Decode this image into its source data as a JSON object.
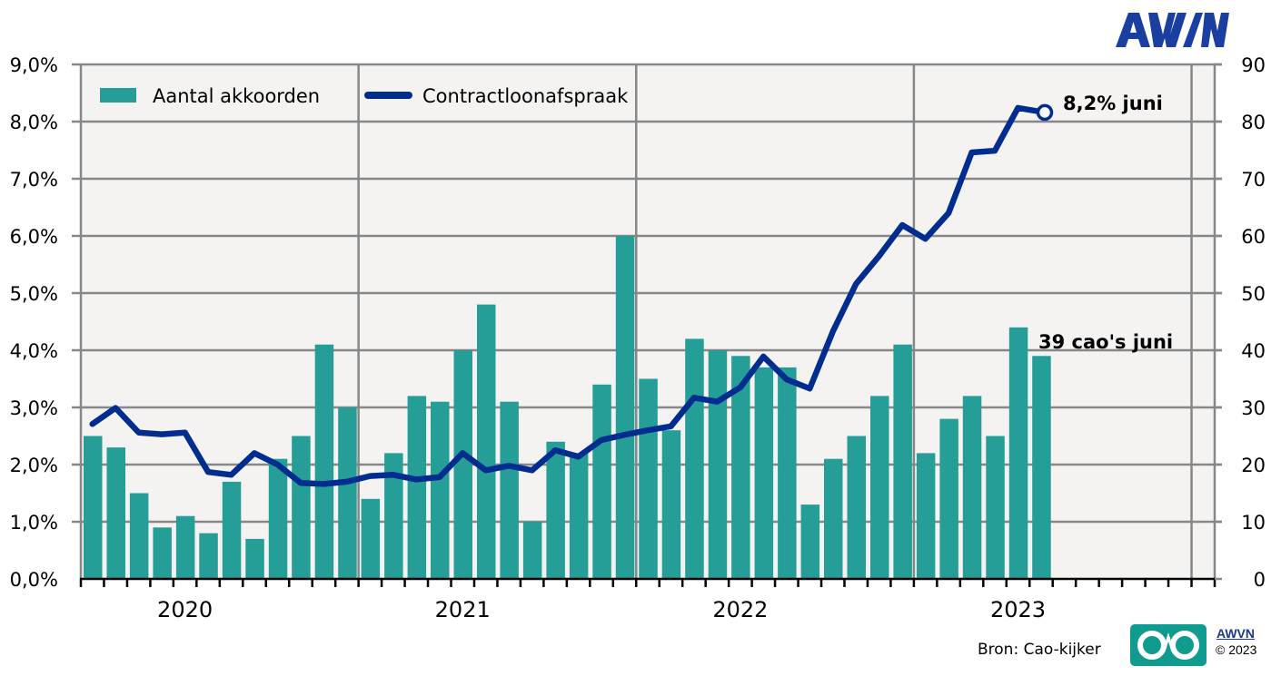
{
  "brand": {
    "logo_text": "AWVN",
    "small_logo_text": "AWVN",
    "copyright": "© 2023",
    "source": "Bron: Cao-kijker"
  },
  "colors": {
    "bar": "#259e97",
    "line": "#002d8f",
    "plot_bg": "#f4f3f2",
    "grid": "#878787",
    "logo_blue": "#1a3fa0",
    "logo_teal": "#0f9b8e"
  },
  "chart_data": {
    "type": "bar+line",
    "title": "",
    "legend": {
      "placement": "top-left",
      "entries": [
        {
          "label": "Aantal akkoorden",
          "kind": "bar"
        },
        {
          "label": "Contractloonafspraak",
          "kind": "line"
        }
      ]
    },
    "x_labels": [
      "2020",
      "2021",
      "2022",
      "2023"
    ],
    "months_per_year": 12,
    "total_slots": 49,
    "y_left": {
      "label": "",
      "min": 0,
      "max": 9,
      "step": 1,
      "tick_labels": [
        "0,0%",
        "1,0%",
        "2,0%",
        "3,0%",
        "4,0%",
        "5,0%",
        "6,0%",
        "7,0%",
        "8,0%",
        "9,0%"
      ]
    },
    "y_right": {
      "label": "",
      "min": 0,
      "max": 90,
      "step": 10,
      "tick_labels": [
        "0",
        "10",
        "20",
        "30",
        "40",
        "50",
        "60",
        "70",
        "80",
        "90"
      ]
    },
    "grid": true,
    "series": [
      {
        "name": "Aantal akkoorden",
        "type": "bar",
        "axis": "right",
        "values": [
          25,
          23,
          15,
          9,
          11,
          8,
          17,
          7,
          21,
          25,
          41,
          30,
          14,
          22,
          32,
          31,
          40,
          48,
          31,
          10,
          24,
          22,
          34,
          60,
          35,
          26,
          42,
          40,
          39,
          37,
          37,
          13,
          21,
          25,
          32,
          41,
          22,
          28,
          32,
          25,
          44,
          39
        ]
      },
      {
        "name": "Contractloonafspraak",
        "type": "line",
        "axis": "left",
        "values": [
          2.71,
          2.99,
          2.56,
          2.53,
          2.56,
          1.87,
          1.82,
          2.2,
          2.0,
          1.68,
          1.66,
          1.7,
          1.8,
          1.82,
          1.74,
          1.78,
          2.2,
          1.9,
          1.98,
          1.9,
          2.25,
          2.14,
          2.43,
          2.52,
          2.6,
          2.67,
          3.17,
          3.1,
          3.35,
          3.89,
          3.49,
          3.33,
          4.33,
          5.16,
          5.65,
          6.19,
          5.95,
          6.4,
          7.46,
          7.49,
          8.24,
          8.16
        ]
      }
    ],
    "annotations": [
      {
        "text": "8,2% juni",
        "series": "Contractloonafspraak",
        "index": 41
      },
      {
        "text": "39 cao's juni",
        "series": "Aantal akkoorden",
        "index": 41
      }
    ]
  }
}
